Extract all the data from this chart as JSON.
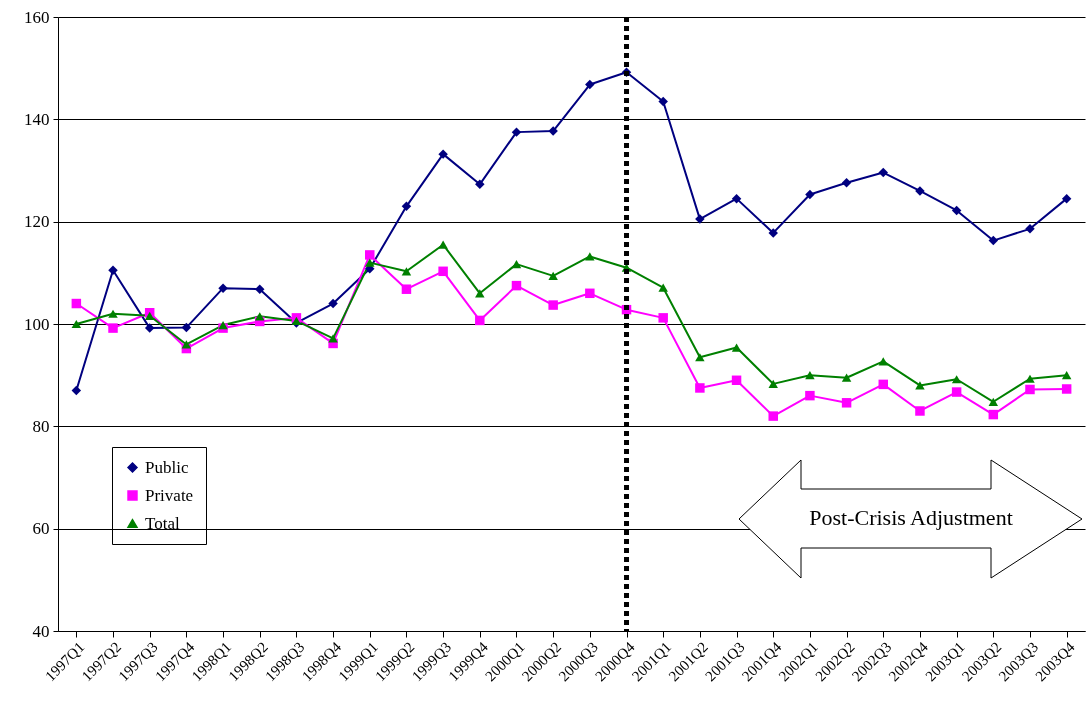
{
  "chart_data": {
    "type": "line",
    "categories": [
      "1997Q1",
      "1997Q2",
      "1997Q3",
      "1997Q4",
      "1998Q1",
      "1998Q2",
      "1998Q3",
      "1998Q4",
      "1999Q1",
      "1999Q2",
      "1999Q3",
      "1999Q4",
      "2000Q1",
      "2000Q2",
      "2000Q3",
      "2000Q4",
      "2001Q1",
      "2001Q2",
      "2001Q3",
      "2001Q4",
      "2002Q1",
      "2002Q2",
      "2002Q3",
      "2002Q4",
      "2003Q1",
      "2003Q2",
      "2003Q3",
      "2003Q4"
    ],
    "series": [
      {
        "name": "Public",
        "color": "#000080",
        "marker": "diamond",
        "values": [
          87,
          110.5,
          99.2,
          99.3,
          107,
          106.8,
          100.2,
          104,
          110.8,
          123,
          133.2,
          127.3,
          137.5,
          137.7,
          146.8,
          149.2,
          143.5,
          120.5,
          124.5,
          117.8,
          125.3,
          127.6,
          129.6,
          126,
          122.2,
          116.3,
          118.6,
          124.5
        ]
      },
      {
        "name": "Private",
        "color": "#ff00ff",
        "marker": "square",
        "values": [
          104,
          99.2,
          102.2,
          95.2,
          99.2,
          100.5,
          101.2,
          96.2,
          113.5,
          106.8,
          110.3,
          100.7,
          107.5,
          103.7,
          106,
          102.8,
          101.2,
          87.5,
          89,
          82,
          86,
          84.6,
          88.2,
          83,
          86.7,
          82.3,
          87.2,
          87.3
        ]
      },
      {
        "name": "Total",
        "color": "#008000",
        "marker": "triangle",
        "values": [
          100,
          102,
          101.6,
          96,
          99.8,
          101.5,
          100.6,
          97.2,
          112,
          110.3,
          115.5,
          106,
          111.7,
          109.4,
          113.2,
          111,
          107.1,
          93.5,
          95.4,
          88.3,
          90,
          89.5,
          92.7,
          88,
          89.2,
          84.8,
          89.3,
          90
        ]
      }
    ],
    "ylim": [
      40,
      160
    ],
    "yticks": [
      40,
      60,
      80,
      100,
      120,
      140,
      160
    ],
    "grid": "y",
    "legend": "bottom left",
    "ref_lines": [
      {
        "axis": "x",
        "value": "2000Q4",
        "color": "#000000",
        "line_style": "dotted"
      }
    ],
    "annotations": [
      "Post-Crisis Adjustment"
    ]
  }
}
